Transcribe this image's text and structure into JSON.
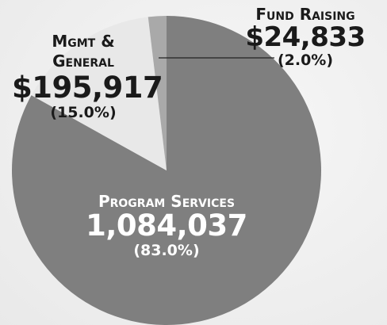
{
  "chart_data": {
    "type": "pie",
    "categories": [
      "Program Services",
      "Mgmt & General",
      "Fund Raising"
    ],
    "values": [
      1084037,
      195917,
      24833
    ],
    "value_labels": [
      "1,084,037",
      "$195,917",
      "$24,833"
    ],
    "percentages": [
      83.0,
      15.0,
      2.0
    ],
    "percentage_labels": [
      "(83.0%)",
      "(15.0%)",
      "(2.0%)"
    ],
    "colors": [
      "#7f7f7f",
      "#e8e8e8",
      "#a9a9a9"
    ]
  }
}
